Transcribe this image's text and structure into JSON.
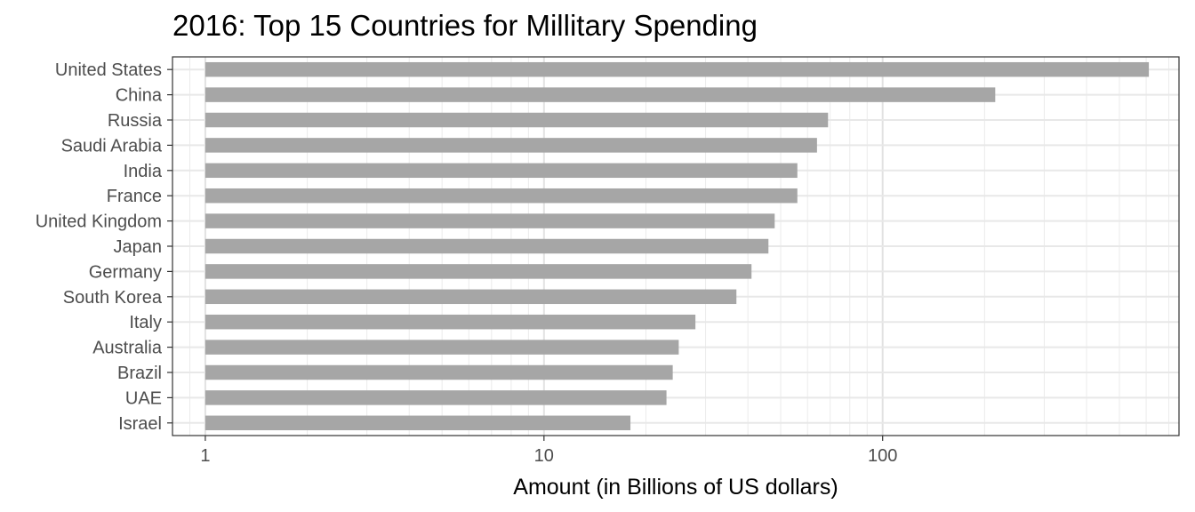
{
  "chart_data": {
    "type": "bar",
    "orientation": "horizontal",
    "title": "2016: Top 15 Countries for Millitary Spending",
    "xlabel": "Amount (in Billions of US dollars)",
    "ylabel": "",
    "x_scale": "log10",
    "xlim": [
      0.8,
      750
    ],
    "x_ticks": [
      1,
      10,
      100
    ],
    "x_tick_labels": [
      "1",
      "10",
      "100"
    ],
    "grid": true,
    "legend": "none",
    "bar_color": "#a6a6a6",
    "categories": [
      "United States",
      "China",
      "Russia",
      "Saudi Arabia",
      "India",
      "France",
      "United Kingdom",
      "Japan",
      "Germany",
      "South Korea",
      "Italy",
      "Australia",
      "Brazil",
      "UAE",
      "Israel"
    ],
    "values": [
      611,
      215,
      69,
      64,
      56,
      56,
      48,
      46,
      41,
      37,
      28,
      25,
      24,
      23,
      18
    ],
    "bar_baseline": 1
  }
}
